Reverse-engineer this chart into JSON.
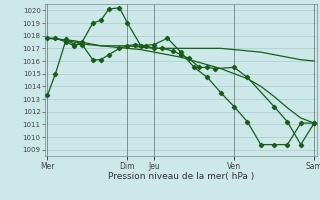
{
  "xlabel": "Pression niveau de la mer( hPa )",
  "bg_color": "#cce8e8",
  "grid_color": "#aacccc",
  "line_color": "#1a5c1a",
  "ylim": [
    1008.5,
    1020.5
  ],
  "yticks": [
    1009,
    1010,
    1011,
    1012,
    1013,
    1014,
    1015,
    1016,
    1017,
    1018,
    1019,
    1020
  ],
  "xtick_labels": [
    "Mer",
    "Dim",
    "Jeu",
    "Ven",
    "Sam"
  ],
  "xtick_positions": [
    0,
    3,
    4,
    7,
    10
  ],
  "vlines_x": [
    0,
    3,
    4,
    7,
    10
  ],
  "x_total": 10,
  "series": [
    {
      "x": [
        0,
        0.3,
        0.7,
        1.0,
        1.3,
        1.7,
        2.0,
        2.3,
        2.7,
        3.0,
        3.3,
        3.7,
        4.0,
        4.3,
        4.7,
        5.0,
        5.3,
        5.7,
        6.0,
        6.3,
        7.0,
        7.5,
        8.5,
        9.0,
        9.5,
        10.0
      ],
      "y": [
        1013.3,
        1015.0,
        1017.7,
        1017.3,
        1017.3,
        1016.1,
        1016.1,
        1016.5,
        1017.0,
        1017.2,
        1017.3,
        1017.2,
        1017.0,
        1017.0,
        1016.8,
        1016.5,
        1016.2,
        1015.5,
        1015.5,
        1015.4,
        1015.5,
        1014.7,
        1012.4,
        1011.2,
        1009.4,
        1011.1
      ],
      "marker": true
    },
    {
      "x": [
        0,
        0.3,
        0.7,
        1.0,
        1.3,
        1.7,
        2.0,
        2.3,
        2.7,
        3.0,
        3.5,
        4.0,
        4.5,
        5.0,
        5.5,
        6.0,
        6.5,
        7.0,
        7.5,
        8.0,
        8.5,
        9.0,
        9.5,
        10.0
      ],
      "y": [
        1017.8,
        1017.8,
        1017.5,
        1017.2,
        1017.5,
        1019.0,
        1019.2,
        1020.1,
        1020.2,
        1019.0,
        1017.2,
        1017.3,
        1017.8,
        1016.7,
        1015.5,
        1014.7,
        1013.5,
        1012.4,
        1011.2,
        1009.4,
        1009.4,
        1009.4,
        1011.1,
        1011.1
      ],
      "marker": true
    },
    {
      "x": [
        0,
        0.5,
        1.0,
        1.5,
        2.0,
        2.5,
        3.0,
        3.5,
        4.0,
        4.5,
        5.0,
        5.5,
        6.0,
        6.5,
        7.0,
        7.5,
        8.0,
        8.5,
        9.0,
        9.5,
        10.0
      ],
      "y": [
        1017.8,
        1017.7,
        1017.5,
        1017.3,
        1017.2,
        1017.2,
        1017.2,
        1017.1,
        1017.0,
        1017.0,
        1017.0,
        1017.0,
        1017.0,
        1017.0,
        1016.9,
        1016.8,
        1016.7,
        1016.5,
        1016.3,
        1016.1,
        1016.0
      ],
      "marker": false
    },
    {
      "x": [
        0,
        0.5,
        1.0,
        1.5,
        2.0,
        2.5,
        3.0,
        3.5,
        4.0,
        4.5,
        5.0,
        5.5,
        6.0,
        6.5,
        7.0,
        7.5,
        8.0,
        8.5,
        9.0,
        9.5,
        10.0
      ],
      "y": [
        1017.8,
        1017.7,
        1017.6,
        1017.4,
        1017.2,
        1017.1,
        1017.0,
        1016.9,
        1016.7,
        1016.5,
        1016.3,
        1016.0,
        1015.7,
        1015.4,
        1015.0,
        1014.6,
        1014.0,
        1013.2,
        1012.3,
        1011.5,
        1011.1
      ],
      "marker": false
    }
  ]
}
